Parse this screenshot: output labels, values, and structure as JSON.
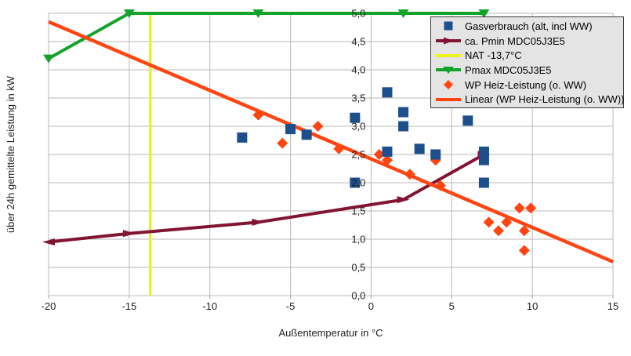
{
  "chart_data": {
    "type": "scatter",
    "title": "",
    "xlabel": "Außentemperatur in °C",
    "ylabel": "über 24h gemittelte Leistung in kW",
    "xlim": [
      -20,
      15
    ],
    "ylim": [
      0,
      5
    ],
    "x_ticks": [
      -20,
      -15,
      -10,
      -5,
      0,
      5,
      10,
      15
    ],
    "x_tick_labels": [
      "-20",
      "-15",
      "-10",
      "-5",
      "0",
      "5",
      "10",
      "15"
    ],
    "y_ticks": [
      0,
      0.5,
      1,
      1.5,
      2,
      2.5,
      3,
      3.5,
      4,
      4.5,
      5
    ],
    "y_tick_labels": [
      "0,0",
      "0,5",
      "1,0",
      "1,5",
      "2,0",
      "2,5",
      "3,0",
      "3,5",
      "4,0",
      "4,5",
      "5,0"
    ],
    "grid": true,
    "grid_color": "#b9b9b9",
    "axis_color": "#a8a8a8",
    "tick_label_color": "#1f1f1f",
    "legend_position": "top-right",
    "legend_background": "#e4e4e4",
    "legend_border": "#363636",
    "series": [
      {
        "key": "gasverbrauch",
        "name": "Gasverbrauch (alt, incl WW)",
        "type": "points",
        "marker": "square",
        "legend_marker": "square",
        "color": "#1c4f8c",
        "points": [
          [
            -8,
            2.8
          ],
          [
            -5,
            2.95
          ],
          [
            -4,
            2.85
          ],
          [
            -1,
            3.15
          ],
          [
            -1,
            2.0
          ],
          [
            1,
            3.6
          ],
          [
            1,
            2.55
          ],
          [
            2,
            3.25
          ],
          [
            2,
            3.0
          ],
          [
            3,
            2.6
          ],
          [
            4,
            2.5
          ],
          [
            6,
            3.1
          ],
          [
            7,
            2.55
          ],
          [
            7,
            2.4
          ],
          [
            7,
            2.0
          ]
        ]
      },
      {
        "key": "pmin",
        "name": "ca. Pmin MDC05J3E5",
        "type": "line",
        "marker": "arrow",
        "legend_marker": "line-arrow",
        "color": "#821433",
        "line_width": 4,
        "points": [
          [
            -20,
            0.95
          ],
          [
            -15,
            1.1
          ],
          [
            -7,
            1.3
          ],
          [
            2,
            1.7
          ],
          [
            7,
            2.5
          ]
        ]
      },
      {
        "key": "nat",
        "name": "NAT -13,7°C",
        "type": "vline",
        "x": -13.7,
        "legend_marker": "line",
        "color": "#efef26",
        "line_width": 3.5
      },
      {
        "key": "pmax",
        "name": "Pmax MDC05J3E5",
        "type": "line",
        "marker": "triangle-down",
        "legend_marker": "line-triangle",
        "color": "#14a32a",
        "line_width": 4,
        "points": [
          [
            -20,
            4.2
          ],
          [
            -15,
            5
          ],
          [
            -7,
            5
          ],
          [
            2,
            5
          ],
          [
            7,
            5
          ]
        ]
      },
      {
        "key": "wp",
        "name": "WP Heiz-Leistung (o. WW)",
        "type": "points",
        "marker": "diamond",
        "legend_marker": "diamond",
        "color": "#ff4512",
        "points": [
          [
            -7,
            3.2
          ],
          [
            -5.5,
            2.7
          ],
          [
            -3.3,
            3.0
          ],
          [
            -2,
            2.6
          ],
          [
            0.5,
            2.5
          ],
          [
            1,
            2.4
          ],
          [
            2.4,
            2.15
          ],
          [
            4,
            2.4
          ],
          [
            4.3,
            1.95
          ],
          [
            7.3,
            1.3
          ],
          [
            7.9,
            1.15
          ],
          [
            8.4,
            1.3
          ],
          [
            9.2,
            1.55
          ],
          [
            9.9,
            1.55
          ],
          [
            9.5,
            1.15
          ],
          [
            9.5,
            0.8
          ]
        ]
      },
      {
        "key": "linear",
        "name": "Linear (WP Heiz-Leistung (o. WW))",
        "type": "line",
        "legend_marker": "line",
        "color": "#ff4512",
        "line_width": 4.5,
        "points": [
          [
            -20,
            4.85
          ],
          [
            15,
            0.6
          ]
        ]
      }
    ]
  }
}
